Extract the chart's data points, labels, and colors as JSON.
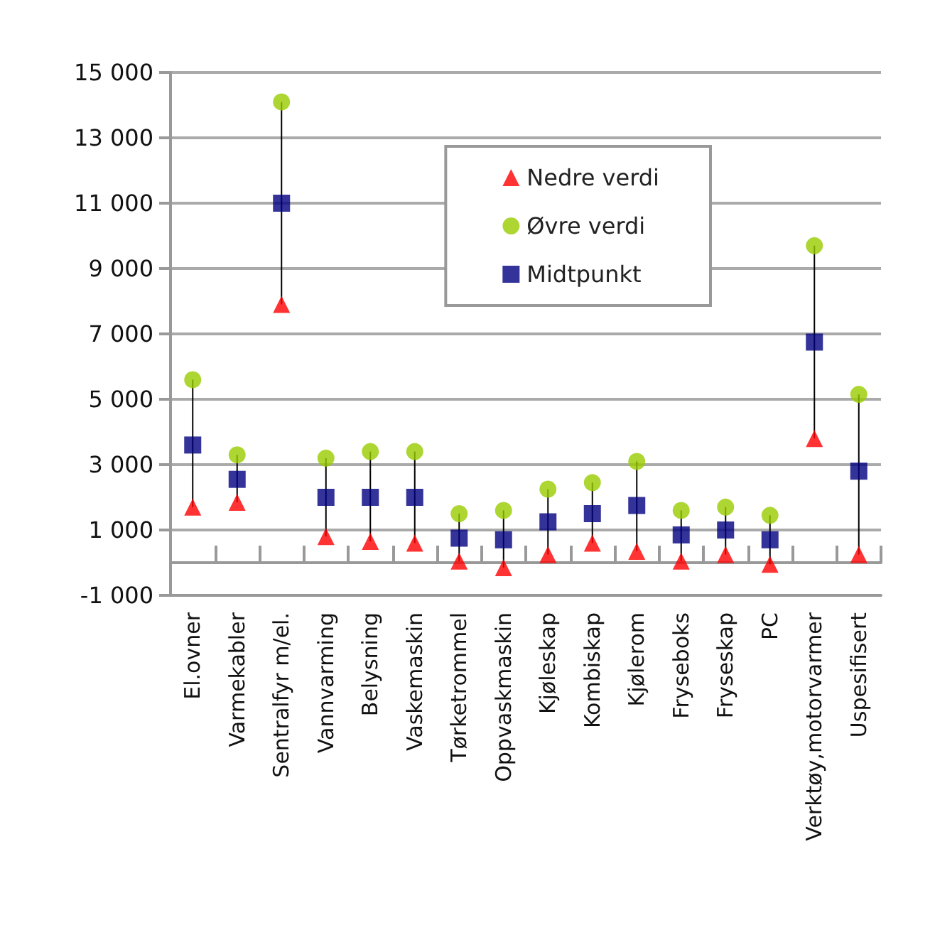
{
  "chart_data": {
    "type": "scatter",
    "categories": [
      "El.ovner",
      "Varmekabler",
      "Sentralfyr m/el.",
      "Vannvarming",
      "Belysning",
      "Vaskemaskin",
      "Tørketrommel",
      "Oppvaskmaskin",
      "Kjøleskap",
      "Kombiskap",
      "Kjølerom",
      "Fryseboks",
      "Fryseskap",
      "PC",
      "Verktøy,motorvarmer",
      "Uspesifisert"
    ],
    "series": [
      {
        "name": "Nedre verdi",
        "color": "#ff0000",
        "marker": "triangle",
        "values": [
          1700,
          1850,
          7900,
          800,
          650,
          600,
          50,
          -150,
          250,
          600,
          350,
          50,
          250,
          -50,
          3800,
          250
        ]
      },
      {
        "name": "Øvre verdi",
        "color": "#99cc00",
        "marker": "circle",
        "values": [
          5600,
          3300,
          14100,
          3200,
          3400,
          3400,
          1500,
          1600,
          2250,
          2450,
          3100,
          1600,
          1700,
          1450,
          9700,
          5150
        ]
      },
      {
        "name": "Midtpunkt",
        "color": "#000080",
        "marker": "square",
        "values": [
          3600,
          2550,
          11000,
          2000,
          2000,
          2000,
          750,
          700,
          1250,
          1500,
          1750,
          850,
          1000,
          700,
          6750,
          2800
        ]
      }
    ],
    "ylim": [
      -1000,
      15000
    ],
    "yticks": [
      {
        "value": -1000,
        "label": "-1 000"
      },
      {
        "value": 1000,
        "label": "1 000"
      },
      {
        "value": 3000,
        "label": "3 000"
      },
      {
        "value": 5000,
        "label": "5 000"
      },
      {
        "value": 7000,
        "label": "7 000"
      },
      {
        "value": 9000,
        "label": "9 000"
      },
      {
        "value": 11000,
        "label": "11 000"
      },
      {
        "value": 13000,
        "label": "13 000"
      },
      {
        "value": 15000,
        "label": "15 000"
      }
    ],
    "grid": "y",
    "legend": "top right"
  }
}
